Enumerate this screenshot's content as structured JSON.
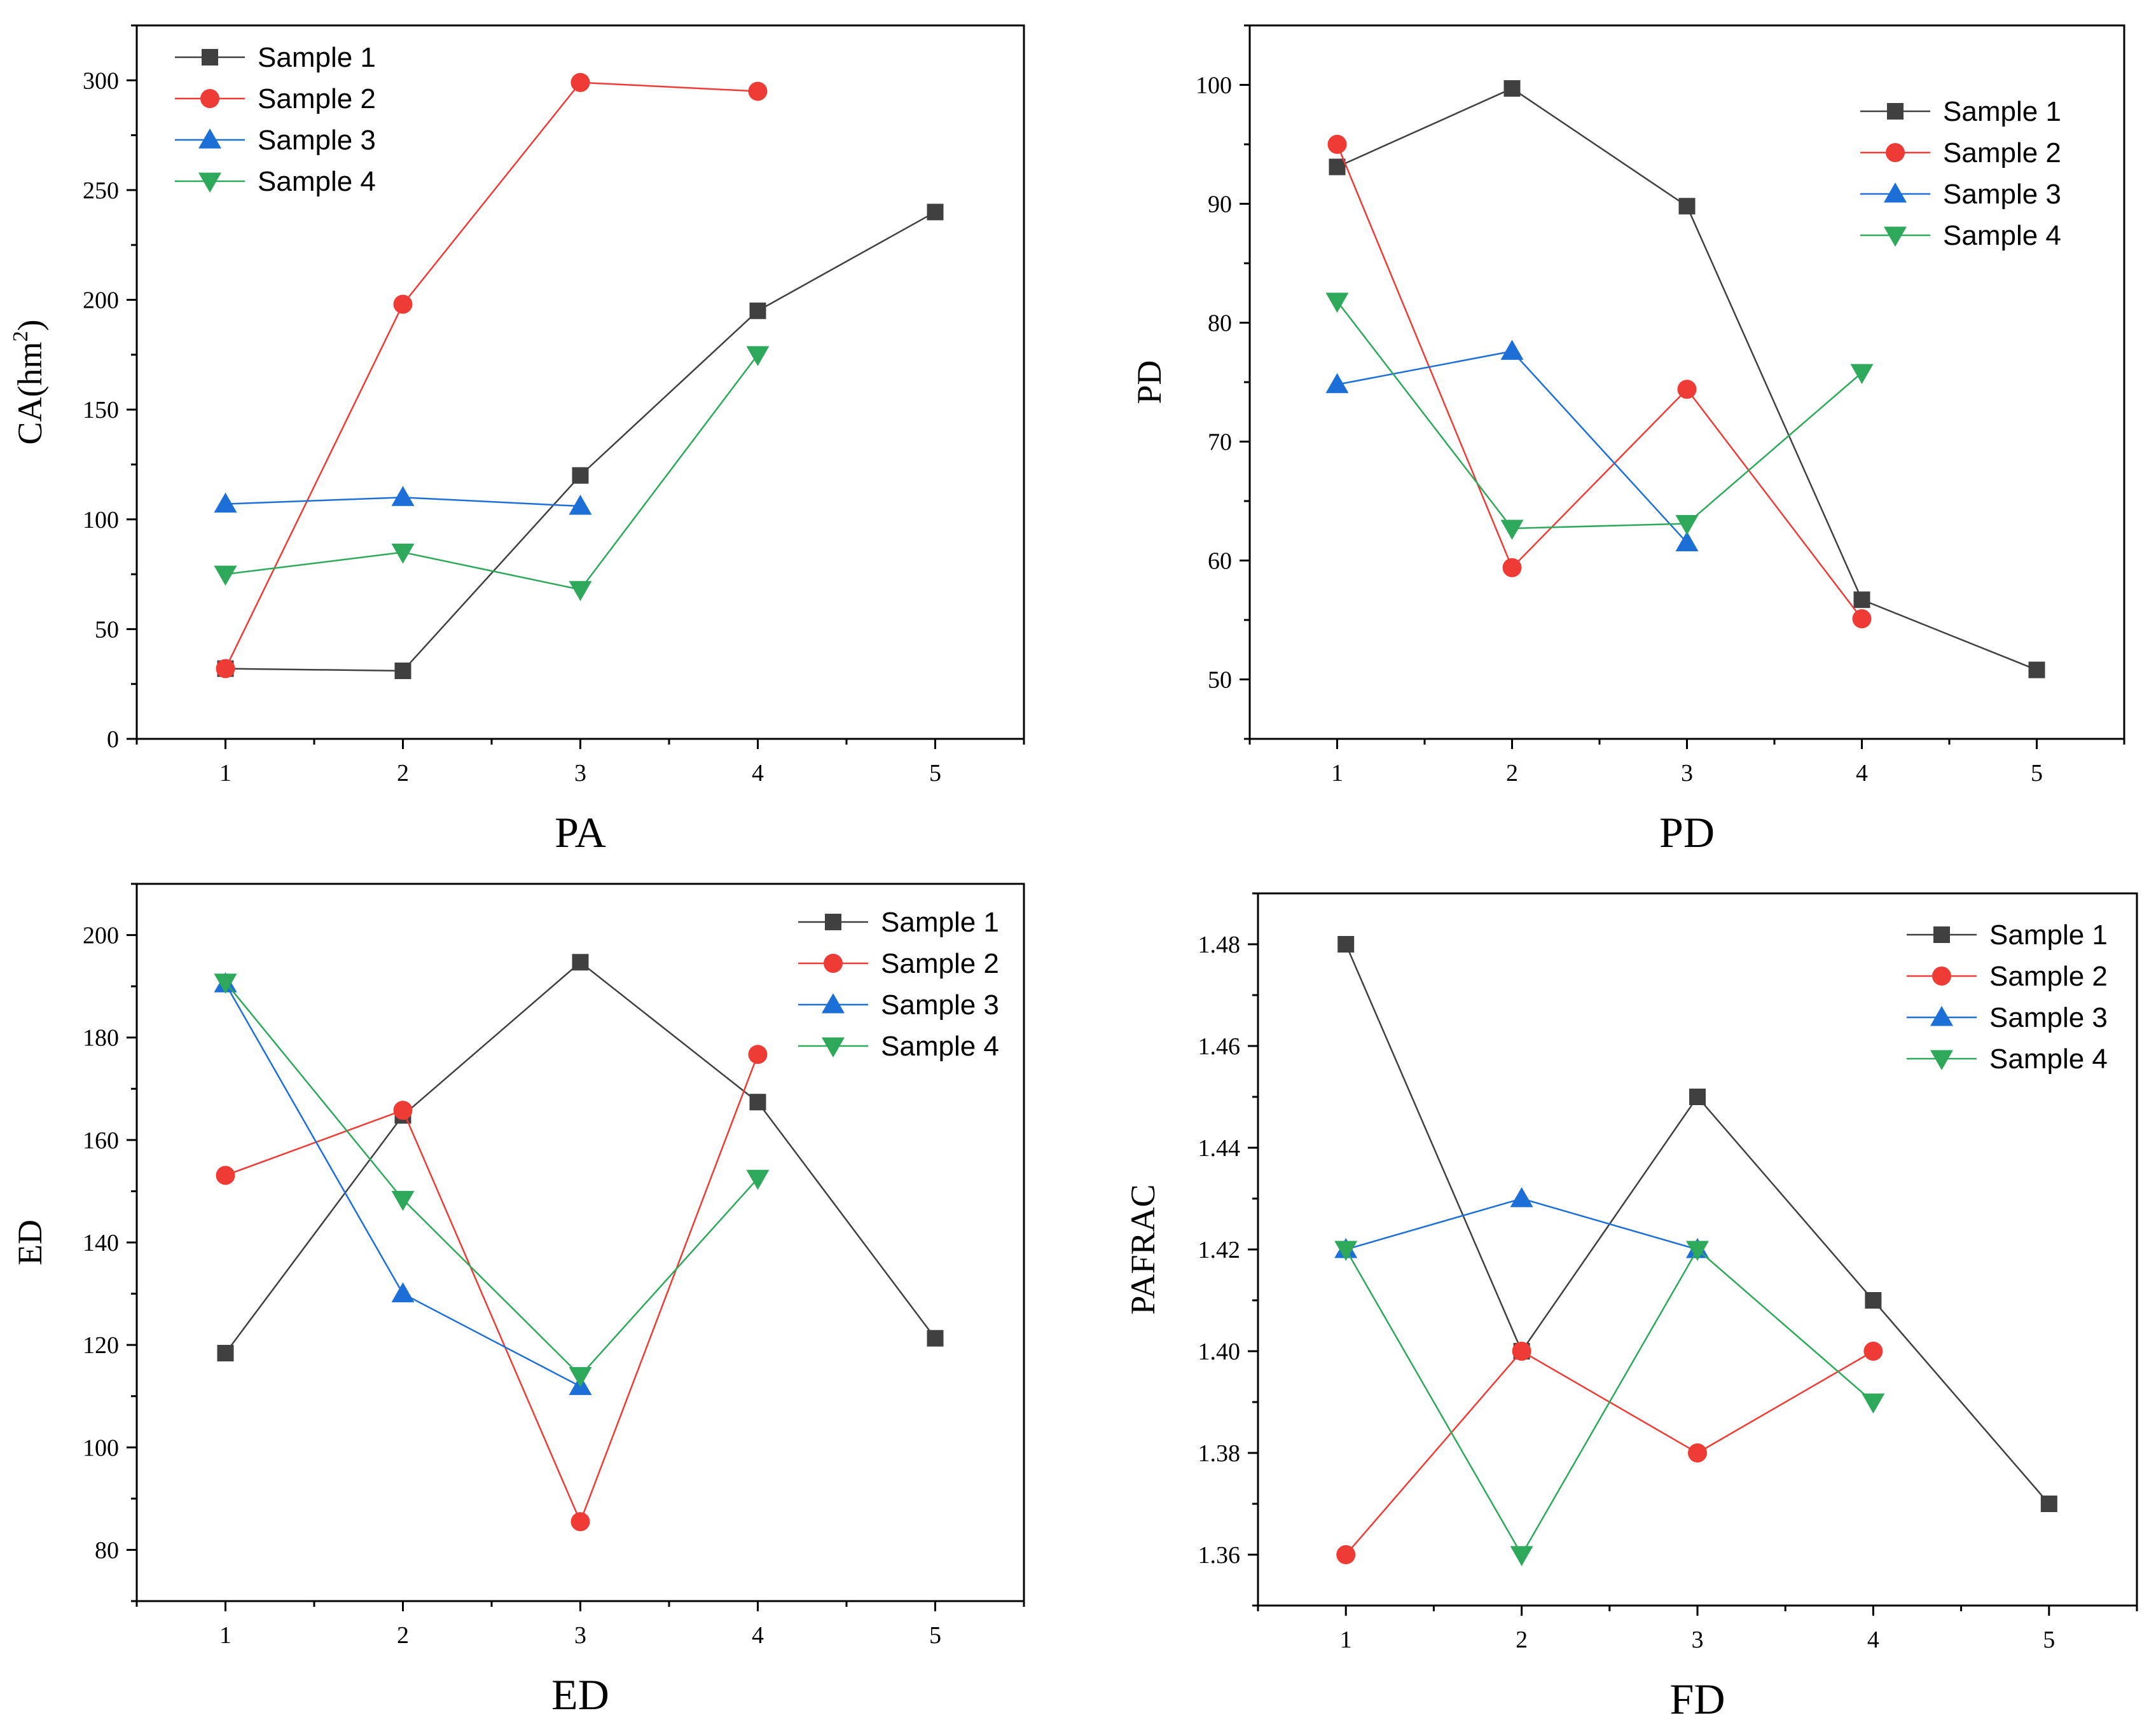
{
  "chart_data": [
    {
      "type": "line",
      "title": "",
      "xlabel": "PA",
      "ylabel": "CA(hm",
      "ylabel_sup": "2",
      "ylabel_suffix": ")",
      "x_ticks": [
        1,
        2,
        3,
        4,
        5
      ],
      "xlim": [
        0.5,
        5.5
      ],
      "ylim": [
        0,
        325
      ],
      "y_ticks": [
        0,
        50,
        100,
        150,
        200,
        250,
        300
      ],
      "legend_position": "top-left",
      "series": [
        {
          "name": "Sample 1",
          "x": [
            1,
            2,
            3,
            4,
            5
          ],
          "values": [
            32,
            31,
            120,
            195,
            240
          ]
        },
        {
          "name": "Sample 2",
          "x": [
            1,
            2,
            3,
            4
          ],
          "values": [
            32,
            198,
            299,
            295
          ]
        },
        {
          "name": "Sample 3",
          "x": [
            1,
            2,
            3
          ],
          "values": [
            107,
            110,
            106
          ]
        },
        {
          "name": "Sample 4",
          "x": [
            1,
            2,
            3,
            4
          ],
          "values": [
            75,
            85,
            68,
            175
          ]
        }
      ]
    },
    {
      "type": "line",
      "title": "",
      "xlabel": "PD",
      "ylabel": "PD",
      "x_ticks": [
        1,
        2,
        3,
        4,
        5
      ],
      "xlim": [
        0.5,
        5.5
      ],
      "ylim": [
        45,
        105
      ],
      "y_ticks": [
        50,
        60,
        70,
        80,
        90,
        100
      ],
      "legend_position": "top-right",
      "series": [
        {
          "name": "Sample 1",
          "x": [
            1,
            2,
            3,
            4,
            5
          ],
          "values": [
            93.1,
            99.7,
            89.8,
            56.7,
            50.8
          ]
        },
        {
          "name": "Sample 2",
          "x": [
            1,
            2,
            3,
            4
          ],
          "values": [
            95.0,
            59.4,
            74.4,
            55.1
          ]
        },
        {
          "name": "Sample 3",
          "x": [
            1,
            2,
            3
          ],
          "values": [
            74.8,
            77.6,
            61.5
          ]
        },
        {
          "name": "Sample 4",
          "x": [
            1,
            2,
            3,
            4
          ],
          "values": [
            81.8,
            62.7,
            63.1,
            75.8
          ]
        }
      ]
    },
    {
      "type": "line",
      "title": "",
      "xlabel": "ED",
      "ylabel": "ED",
      "x_ticks": [
        1,
        2,
        3,
        4,
        5
      ],
      "xlim": [
        0.5,
        5.5
      ],
      "ylim": [
        70,
        210
      ],
      "y_ticks": [
        80,
        100,
        120,
        140,
        160,
        180,
        200
      ],
      "legend_position": "top-right",
      "series": [
        {
          "name": "Sample 1",
          "x": [
            1,
            2,
            3,
            4,
            5
          ],
          "values": [
            118.4,
            164.8,
            194.7,
            167.4,
            121.3
          ]
        },
        {
          "name": "Sample 2",
          "x": [
            1,
            2,
            3,
            4
          ],
          "values": [
            153.1,
            165.8,
            85.5,
            176.7
          ]
        },
        {
          "name": "Sample 3",
          "x": [
            1,
            2,
            3
          ],
          "values": [
            190.5,
            130.0,
            111.9
          ]
        },
        {
          "name": "Sample 4",
          "x": [
            1,
            2,
            3,
            4
          ],
          "values": [
            190.8,
            148.4,
            114.0,
            152.5
          ]
        }
      ]
    },
    {
      "type": "line",
      "title": "",
      "xlabel": "FD",
      "ylabel": "PAFRAC",
      "x_ticks": [
        1,
        2,
        3,
        4,
        5
      ],
      "xlim": [
        0.5,
        5.5
      ],
      "ylim": [
        1.35,
        1.49
      ],
      "y_ticks": [
        "1.36",
        "1.38",
        "1.40",
        "1.42",
        "1.44",
        "1.46",
        "1.48"
      ],
      "legend_position": "top-right",
      "series": [
        {
          "name": "Sample 1",
          "x": [
            1,
            2,
            3,
            4,
            5
          ],
          "values": [
            1.48,
            1.4,
            1.45,
            1.41,
            1.37
          ]
        },
        {
          "name": "Sample 2",
          "x": [
            1,
            2,
            3,
            4
          ],
          "values": [
            1.36,
            1.4,
            1.38,
            1.4
          ]
        },
        {
          "name": "Sample 3",
          "x": [
            1,
            2,
            3
          ],
          "values": [
            1.42,
            1.43,
            1.42
          ]
        },
        {
          "name": "Sample 4",
          "x": [
            1,
            2,
            3,
            4
          ],
          "values": [
            1.42,
            1.36,
            1.42,
            1.39
          ]
        }
      ]
    }
  ],
  "series_styles": [
    {
      "color": "#404040",
      "marker": "square"
    },
    {
      "color": "#ef3b36",
      "marker": "circle"
    },
    {
      "color": "#1d6fd8",
      "marker": "triangle-up"
    },
    {
      "color": "#2ea85a",
      "marker": "triangle-down"
    }
  ]
}
